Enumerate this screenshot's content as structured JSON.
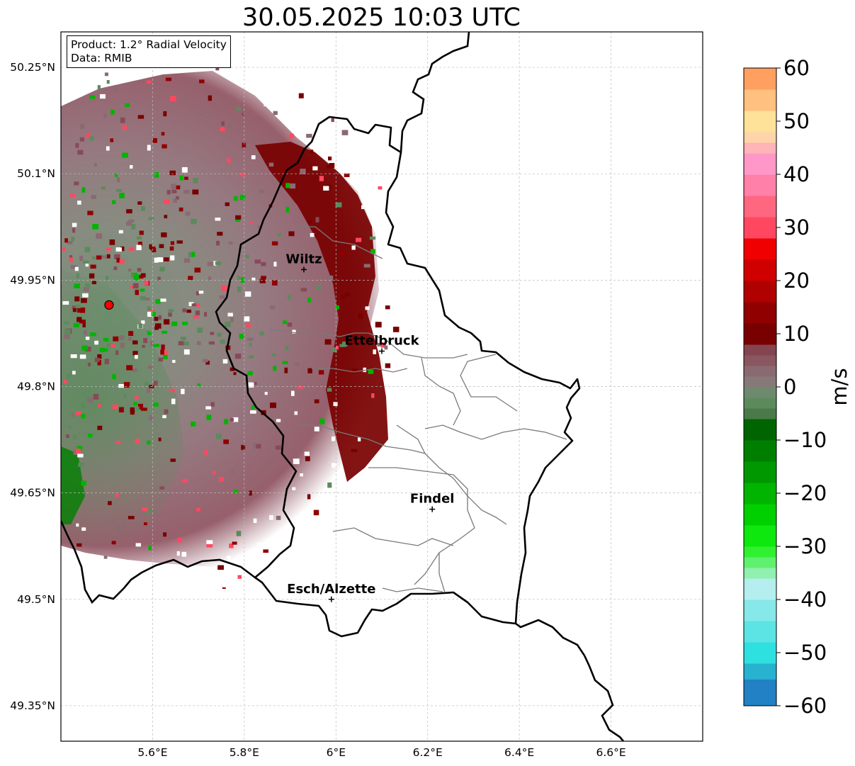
{
  "title": "30.05.2025 10:03 UTC",
  "info": {
    "product": "Product: 1.2° Radial Velocity",
    "data": "Data: RMIB"
  },
  "map": {
    "lon_range": [
      5.4,
      6.8
    ],
    "lat_range": [
      49.3,
      50.3
    ],
    "lon_ticks": [
      {
        "value": 5.6,
        "label": "5.6°E"
      },
      {
        "value": 5.8,
        "label": "5.8°E"
      },
      {
        "value": 6.0,
        "label": "6°E"
      },
      {
        "value": 6.2,
        "label": "6.2°E"
      },
      {
        "value": 6.4,
        "label": "6.4°E"
      },
      {
        "value": 6.6,
        "label": "6.6°E"
      }
    ],
    "lat_ticks": [
      {
        "value": 50.25,
        "label": "50.25°N"
      },
      {
        "value": 50.1,
        "label": "50.1°N"
      },
      {
        "value": 49.95,
        "label": "49.95°N"
      },
      {
        "value": 49.8,
        "label": "49.8°N"
      },
      {
        "value": 49.65,
        "label": "49.65°N"
      },
      {
        "value": 49.5,
        "label": "49.5°N"
      },
      {
        "value": 49.35,
        "label": "49.35°N"
      }
    ],
    "radar_site": {
      "lon": 5.505,
      "lat": 49.915,
      "color": "#ff0000"
    },
    "cities": [
      {
        "name": "Wiltz",
        "lon": 5.93,
        "lat": 49.965
      },
      {
        "name": "Ettelbruck",
        "lon": 6.1,
        "lat": 49.85
      },
      {
        "name": "Findel",
        "lon": 6.21,
        "lat": 49.627
      },
      {
        "name": "Esch/Alzette",
        "lon": 5.99,
        "lat": 49.5
      }
    ]
  },
  "colorbar": {
    "label": "m/s",
    "range": [
      -60,
      60
    ],
    "ticks": [
      {
        "value": 60,
        "label": "60"
      },
      {
        "value": 50,
        "label": "50"
      },
      {
        "value": 40,
        "label": "40"
      },
      {
        "value": 30,
        "label": "30"
      },
      {
        "value": 20,
        "label": "20"
      },
      {
        "value": 10,
        "label": "10"
      },
      {
        "value": 0,
        "label": "0"
      },
      {
        "value": -10,
        "label": "−10"
      },
      {
        "value": -20,
        "label": "−20"
      },
      {
        "value": -30,
        "label": "−30"
      },
      {
        "value": -40,
        "label": "−40"
      },
      {
        "value": -50,
        "label": "−50"
      },
      {
        "value": -60,
        "label": "−60"
      }
    ],
    "stops": [
      {
        "from": -60,
        "to": -55,
        "color": "#2181c4"
      },
      {
        "from": -55,
        "to": -52,
        "color": "#27b2d0"
      },
      {
        "from": -52,
        "to": -48,
        "color": "#2ee0e0"
      },
      {
        "from": -48,
        "to": -44,
        "color": "#5ce4e4"
      },
      {
        "from": -44,
        "to": -40,
        "color": "#86e8e8"
      },
      {
        "from": -40,
        "to": -36,
        "color": "#b4eeee"
      },
      {
        "from": -36,
        "to": -34,
        "color": "#90f0b0"
      },
      {
        "from": -34,
        "to": -32,
        "color": "#60f070"
      },
      {
        "from": -32,
        "to": -30,
        "color": "#30f030"
      },
      {
        "from": -30,
        "to": -26,
        "color": "#0ee80e"
      },
      {
        "from": -26,
        "to": -22,
        "color": "#00d000"
      },
      {
        "from": -22,
        "to": -18,
        "color": "#00b400"
      },
      {
        "from": -18,
        "to": -14,
        "color": "#009800"
      },
      {
        "from": -14,
        "to": -10,
        "color": "#007e00"
      },
      {
        "from": -10,
        "to": -6,
        "color": "#006400"
      },
      {
        "from": -6,
        "to": -4,
        "color": "#4a7a4a"
      },
      {
        "from": -4,
        "to": -2,
        "color": "#5d8a5d"
      },
      {
        "from": -2,
        "to": 0,
        "color": "#6e8a6e"
      },
      {
        "from": 0,
        "to": 2,
        "color": "#857a78"
      },
      {
        "from": 2,
        "to": 4,
        "color": "#8a6a72"
      },
      {
        "from": 4,
        "to": 6,
        "color": "#8a5660"
      },
      {
        "from": 6,
        "to": 8,
        "color": "#844450"
      },
      {
        "from": 8,
        "to": 12,
        "color": "#780000"
      },
      {
        "from": 12,
        "to": 16,
        "color": "#900000"
      },
      {
        "from": 16,
        "to": 20,
        "color": "#b00000"
      },
      {
        "from": 20,
        "to": 24,
        "color": "#d00000"
      },
      {
        "from": 24,
        "to": 28,
        "color": "#f00000"
      },
      {
        "from": 28,
        "to": 32,
        "color": "#ff4860"
      },
      {
        "from": 32,
        "to": 36,
        "color": "#ff6680"
      },
      {
        "from": 36,
        "to": 40,
        "color": "#ff80a8"
      },
      {
        "from": 40,
        "to": 44,
        "color": "#ff98c8"
      },
      {
        "from": 44,
        "to": 46,
        "color": "#ffb4b8"
      },
      {
        "from": 46,
        "to": 48,
        "color": "#ffd4a8"
      },
      {
        "from": 48,
        "to": 52,
        "color": "#ffe29a"
      },
      {
        "from": 52,
        "to": 56,
        "color": "#ffc080"
      },
      {
        "from": 56,
        "to": 60,
        "color": "#ffa060"
      }
    ]
  }
}
